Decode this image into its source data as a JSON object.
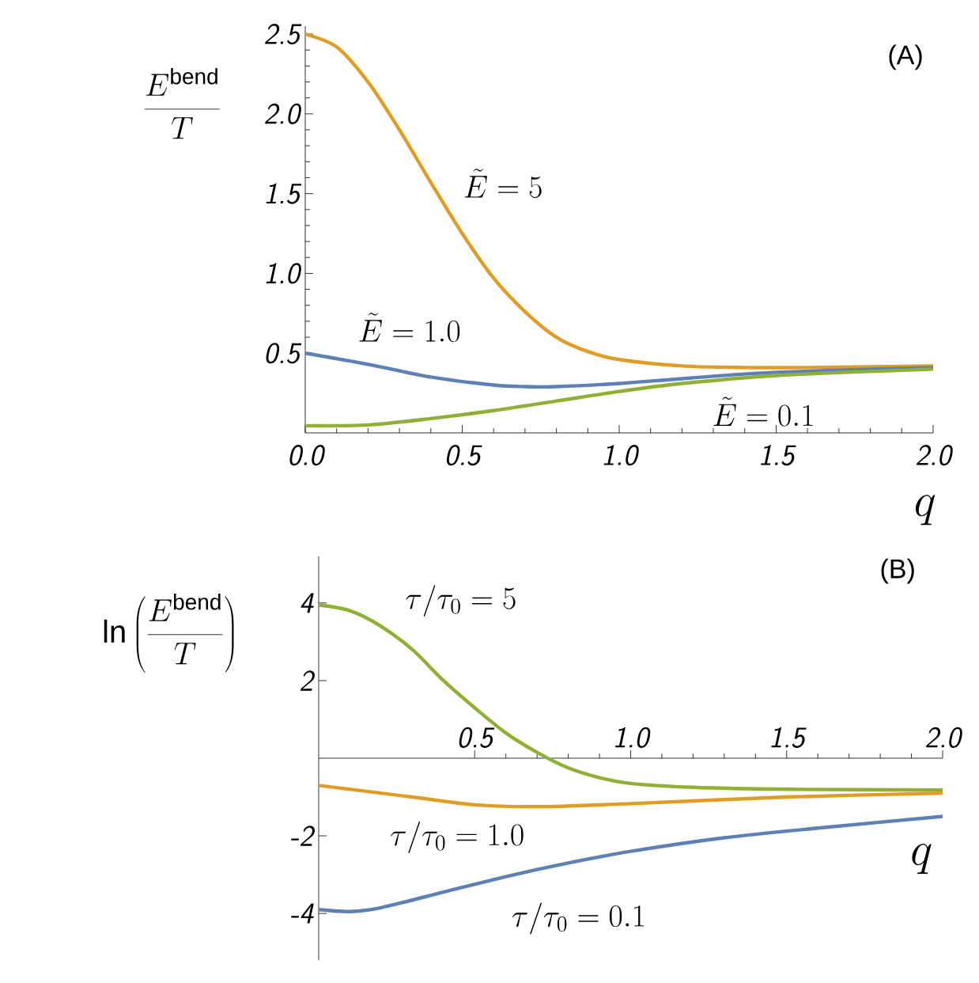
{
  "chart_data": [
    {
      "type": "line",
      "title": "(A)",
      "xlabel": "q",
      "ylabel": "\\frac{E^{\\mathrm{bend}}}{T}",
      "xlim": [
        0,
        2.0
      ],
      "ylim": [
        0,
        2.55
      ],
      "xticks": [
        {
          "value": 0,
          "label": "0.0"
        },
        {
          "value": 0.5,
          "label": "0.5"
        },
        {
          "value": 1.0,
          "label": "1.0"
        },
        {
          "value": 1.5,
          "label": "1.5"
        },
        {
          "value": 2.0,
          "label": "2.0"
        }
      ],
      "yticks": [
        {
          "value": 0.5,
          "label": "0.5"
        },
        {
          "value": 1.0,
          "label": "1.0"
        },
        {
          "value": 1.5,
          "label": "1.5"
        },
        {
          "value": 2.0,
          "label": "2.0"
        },
        {
          "value": 2.5,
          "label": "2.5"
        }
      ],
      "grid": false,
      "marker": "none",
      "line_style": "solid",
      "series": [
        {
          "color": "#e19c24",
          "x": [
            0,
            0.1,
            0.2,
            0.3,
            0.4,
            0.5,
            0.6,
            0.7,
            0.8,
            0.9,
            1.0,
            1.2,
            1.4,
            1.6,
            2.0
          ],
          "values": [
            2.5,
            2.42,
            2.2,
            1.9,
            1.57,
            1.25,
            0.97,
            0.76,
            0.6,
            0.51,
            0.46,
            0.42,
            0.41,
            0.41,
            0.42
          ]
        },
        {
          "color": "#5e81b5",
          "x": [
            0,
            0.2,
            0.4,
            0.6,
            0.7,
            0.8,
            1.0,
            1.2,
            1.5,
            2.0
          ],
          "values": [
            0.5,
            0.43,
            0.35,
            0.3,
            0.29,
            0.29,
            0.31,
            0.34,
            0.38,
            0.41
          ]
        },
        {
          "color": "#8fb032",
          "x": [
            0,
            0.2,
            0.4,
            0.6,
            0.8,
            1.0,
            1.2,
            1.5,
            2.0
          ],
          "values": [
            0.045,
            0.05,
            0.09,
            0.14,
            0.2,
            0.26,
            0.31,
            0.36,
            0.4
          ]
        }
      ],
      "annotations": [
        "\\tilde{E}=5",
        "\\tilde{E}=1.0",
        "\\tilde{E}=0.1"
      ]
    },
    {
      "type": "line",
      "title": "(B)",
      "xlabel": "q",
      "ylabel": "\\ln\\left(\\frac{E^{\\mathrm{bend}}}{T}\\right)",
      "xlim": [
        0,
        2.0
      ],
      "ylim": [
        -5.2,
        5.2
      ],
      "xticks": [
        {
          "value": 0.5,
          "label": "0.5"
        },
        {
          "value": 1.0,
          "label": "1.0"
        },
        {
          "value": 1.5,
          "label": "1.5"
        },
        {
          "value": 2.0,
          "label": "2.0"
        }
      ],
      "yticks": [
        -4,
        -2,
        2,
        4
      ],
      "grid": false,
      "marker": "none",
      "line_style": "solid",
      "series": [
        {
          "color": "#8fb032",
          "x": [
            0,
            0.1,
            0.2,
            0.3,
            0.4,
            0.5,
            0.6,
            0.7,
            0.8,
            0.9,
            1.0,
            1.2,
            1.5,
            2.0
          ],
          "values": [
            3.95,
            3.8,
            3.4,
            2.8,
            2.0,
            1.3,
            0.65,
            0.15,
            -0.25,
            -0.5,
            -0.65,
            -0.75,
            -0.8,
            -0.82
          ]
        },
        {
          "color": "#e19c24",
          "x": [
            0,
            0.3,
            0.5,
            0.7,
            1.0,
            1.5,
            2.0
          ],
          "values": [
            -0.7,
            -1.0,
            -1.2,
            -1.25,
            -1.17,
            -1.0,
            -0.9
          ]
        },
        {
          "color": "#5e81b5",
          "x": [
            0,
            0.1,
            0.2,
            0.4,
            0.6,
            0.8,
            1.0,
            1.3,
            1.6,
            2.0
          ],
          "values": [
            -3.9,
            -3.95,
            -3.85,
            -3.45,
            -3.05,
            -2.7,
            -2.4,
            -2.05,
            -1.8,
            -1.5
          ]
        }
      ],
      "annotations": [
        "\\tau/\\tau_0=5",
        "\\tau/\\tau_0=1.0",
        "\\tau/\\tau_0=0.1"
      ]
    }
  ]
}
